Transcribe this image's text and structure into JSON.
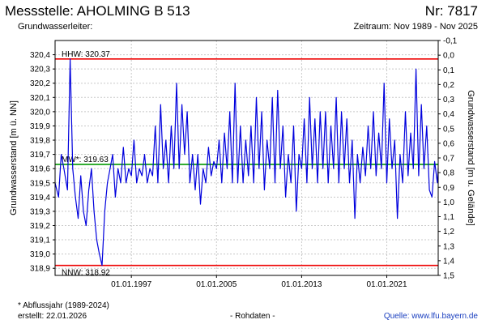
{
  "header": {
    "title": "Messstelle: AHOLMING B 513",
    "number": "Nr: 7817",
    "subtitle_left": "Grundwasserleiter:",
    "subtitle_right": "Zeitraum: Nov 1989 - Nov 2025"
  },
  "footer": {
    "note": "* Abflussjahr (1989-2024)",
    "created": "erstellt:   22.01.2026",
    "mode": "- Rohdaten -",
    "source_label": "Quelle: ",
    "source_link": "www.lfu.bayern.de"
  },
  "colors": {
    "series": "#0000dd",
    "hhw": "#ee0000",
    "nnw": "#ee0000",
    "mw": "#009900",
    "grid": "#c8c8c8"
  },
  "chart_data": {
    "type": "line",
    "ylabel_left": "Grundwasserstand [m ü. NN]",
    "ylabel_right": "Grundwasserstand [m u. Gelände]",
    "ylim_left": [
      318.85,
      320.5
    ],
    "ylim_right": [
      -0.1,
      1.5
    ],
    "xlim": [
      "1989-11-01",
      "2025-11-01"
    ],
    "yticks_left": [
      "320,4",
      "320,3",
      "320,2",
      "320,1",
      "320,0",
      "319,9",
      "319,8",
      "319,7",
      "319,6",
      "319,5",
      "319,4",
      "319,3",
      "319,2",
      "319,1",
      "319,0",
      "318,9"
    ],
    "yticks_right": [
      "-0,1",
      "0,0",
      "0,1",
      "0,2",
      "0,3",
      "0,4",
      "0,5",
      "0,6",
      "0,7",
      "0,8",
      "0,9",
      "1,0",
      "1,1",
      "1,2",
      "1,3",
      "1,4",
      "1,5"
    ],
    "xticks": [
      {
        "date": "1997-01-01",
        "label": "01.01.1997"
      },
      {
        "date": "2005-01-01",
        "label": "01.01.2005"
      },
      {
        "date": "2013-01-01",
        "label": "01.01.2013"
      },
      {
        "date": "2021-01-01",
        "label": "01.01.2021"
      }
    ],
    "grid": true,
    "reference_lines": [
      {
        "key": "hhw",
        "label": "HHW: 320.37",
        "value": 320.37
      },
      {
        "key": "mw",
        "label": "MW*: 319.63",
        "value": 319.63
      },
      {
        "key": "nnw",
        "label": "NNW: 318.92",
        "value": 318.92
      }
    ],
    "series": [
      {
        "x": [
          "1989-11-01",
          "1990-03-01",
          "1990-06-01",
          "1990-09-01",
          "1991-01-01",
          "1991-04-01",
          "1991-07-01",
          "1991-10-01",
          "1992-01-01",
          "1992-04-01",
          "1992-07-01",
          "1992-10-01",
          "1993-01-01",
          "1993-04-01",
          "1993-07-01",
          "1993-10-01",
          "1994-01-01",
          "1994-04-01",
          "1994-07-01",
          "1994-10-01",
          "1995-01-01",
          "1995-04-01",
          "1995-07-01",
          "1995-10-01",
          "1996-01-01",
          "1996-04-01",
          "1996-07-01",
          "1996-10-01",
          "1997-01-01",
          "1997-04-01",
          "1997-07-01",
          "1997-10-01",
          "1998-01-01",
          "1998-04-01",
          "1998-07-01",
          "1998-10-01",
          "1999-01-01",
          "1999-04-01",
          "1999-07-01",
          "1999-10-01",
          "2000-01-01",
          "2000-04-01",
          "2000-07-01",
          "2000-10-01",
          "2001-01-01",
          "2001-04-01",
          "2001-07-01",
          "2001-10-01",
          "2002-01-01",
          "2002-04-01",
          "2002-07-01",
          "2002-10-01",
          "2003-01-01",
          "2003-04-01",
          "2003-07-01",
          "2003-10-01",
          "2004-01-01",
          "2004-04-01",
          "2004-07-01",
          "2004-10-01",
          "2005-01-01",
          "2005-04-01",
          "2005-07-01",
          "2005-10-01",
          "2006-01-01",
          "2006-04-01",
          "2006-07-01",
          "2006-10-01",
          "2007-01-01",
          "2007-04-01",
          "2007-07-01",
          "2007-10-01",
          "2008-01-01",
          "2008-04-01",
          "2008-07-01",
          "2008-10-01",
          "2009-01-01",
          "2009-04-01",
          "2009-07-01",
          "2009-10-01",
          "2010-01-01",
          "2010-04-01",
          "2010-07-01",
          "2010-10-01",
          "2011-01-01",
          "2011-04-01",
          "2011-07-01",
          "2011-10-01",
          "2012-01-01",
          "2012-04-01",
          "2012-07-01",
          "2012-10-01",
          "2013-01-01",
          "2013-04-01",
          "2013-07-01",
          "2013-10-01",
          "2014-01-01",
          "2014-04-01",
          "2014-07-01",
          "2014-10-01",
          "2015-01-01",
          "2015-04-01",
          "2015-07-01",
          "2015-10-01",
          "2016-01-01",
          "2016-04-01",
          "2016-07-01",
          "2016-10-01",
          "2017-01-01",
          "2017-04-01",
          "2017-07-01",
          "2017-10-01",
          "2018-01-01",
          "2018-04-01",
          "2018-07-01",
          "2018-10-01",
          "2019-01-01",
          "2019-04-01",
          "2019-07-01",
          "2019-10-01",
          "2020-01-01",
          "2020-04-01",
          "2020-07-01",
          "2020-10-01",
          "2021-01-01",
          "2021-04-01",
          "2021-07-01",
          "2021-10-01",
          "2022-01-01",
          "2022-04-01",
          "2022-07-01",
          "2022-10-01",
          "2023-01-01",
          "2023-04-01",
          "2023-07-01",
          "2023-10-01",
          "2024-01-01",
          "2024-04-01",
          "2024-07-01",
          "2024-10-01",
          "2025-01-01",
          "2025-04-01",
          "2025-07-01",
          "2025-10-01",
          "2025-11-01"
        ],
        "values": [
          319.5,
          319.4,
          319.7,
          319.6,
          319.45,
          320.37,
          319.6,
          319.4,
          319.25,
          319.55,
          319.3,
          319.2,
          319.45,
          319.6,
          319.3,
          319.1,
          319.0,
          318.92,
          319.3,
          319.5,
          319.6,
          319.7,
          319.4,
          319.6,
          319.5,
          319.75,
          319.5,
          319.6,
          319.55,
          319.8,
          319.5,
          319.6,
          319.55,
          319.7,
          319.5,
          319.6,
          319.55,
          319.9,
          319.5,
          320.05,
          319.6,
          319.8,
          319.5,
          319.9,
          319.6,
          320.2,
          319.6,
          320.05,
          319.7,
          320.0,
          319.5,
          319.7,
          319.45,
          319.7,
          319.35,
          319.6,
          319.5,
          319.75,
          319.55,
          319.65,
          319.6,
          319.8,
          319.5,
          319.85,
          319.6,
          320.0,
          319.5,
          320.2,
          319.5,
          319.9,
          319.5,
          319.8,
          319.55,
          319.9,
          319.5,
          320.1,
          319.6,
          320.0,
          319.45,
          319.8,
          319.6,
          320.1,
          319.5,
          320.15,
          319.6,
          319.9,
          319.4,
          319.7,
          319.5,
          319.9,
          319.3,
          319.7,
          319.6,
          319.95,
          319.5,
          320.1,
          319.6,
          319.95,
          319.5,
          320.0,
          319.6,
          320.0,
          319.5,
          319.9,
          319.6,
          320.1,
          319.5,
          320.0,
          319.6,
          319.95,
          319.5,
          319.8,
          319.25,
          319.7,
          319.5,
          319.75,
          319.55,
          319.9,
          319.6,
          320.0,
          319.55,
          319.85,
          319.6,
          320.2,
          319.5,
          319.95,
          319.6,
          319.8,
          319.25,
          319.7,
          319.5,
          320.0,
          319.55,
          319.85,
          319.6,
          320.3,
          319.55,
          320.05,
          319.6,
          319.9,
          319.45,
          319.4,
          319.65,
          319.5,
          319.6
        ]
      }
    ]
  }
}
